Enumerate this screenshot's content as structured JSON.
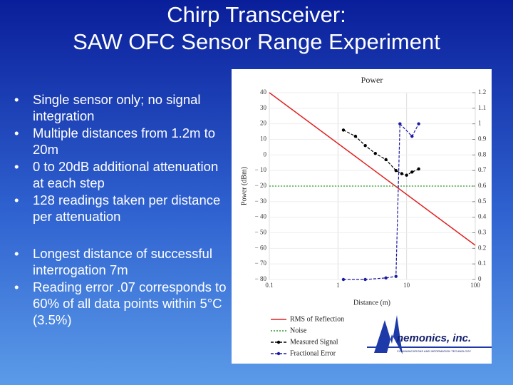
{
  "slide": {
    "title_lines": [
      "Chirp Transceiver:",
      "SAW OFC Sensor Range Experiment"
    ],
    "bullet_groups": [
      [
        "Single sensor only; no signal integration",
        "Multiple distances from 1.2m to 20m",
        "0 to 20dB additional attenuation at each step",
        "128 readings taken per distance per attenuation"
      ],
      [
        "Longest distance of successful interrogation 7m",
        "Reading error .07 corresponds to 60% of all data points within 5°C (3.5%)"
      ]
    ],
    "logo": {
      "name": "nemonics, inc.",
      "tagline": "COMMUNICATIONS AND INFORMATION TECHNOLOGY"
    }
  },
  "chart_data": {
    "type": "line",
    "title": "Power",
    "x_label": "Distance (m)",
    "y_label": "Power (dBm)",
    "x_scale": "log",
    "xlim": [
      0.1,
      100
    ],
    "xticks": [
      0.1,
      1,
      10,
      100
    ],
    "ylim": [
      -80,
      40
    ],
    "yticks": [
      40,
      30,
      20,
      10,
      0,
      {
        "value": -10,
        "label": "− 10"
      },
      {
        "value": -20,
        "label": "− 20"
      },
      {
        "value": -30,
        "label": "− 30"
      },
      {
        "value": -40,
        "label": "− 40"
      },
      {
        "value": -50,
        "label": "− 50"
      },
      {
        "value": -60,
        "label": "− 60"
      },
      {
        "value": -70,
        "label": "− 70"
      },
      {
        "value": -80,
        "label": "− 80"
      }
    ],
    "y2lim": [
      0,
      1.2
    ],
    "y2ticks": [
      1.2,
      1.1,
      1,
      0.9,
      0.8,
      0.7,
      0.6,
      0.5,
      0.4,
      0.3,
      0.2,
      0.1,
      0
    ],
    "grid": true,
    "legend": "below",
    "series": [
      {
        "name": "RMS of Reflection",
        "color": "#e02020",
        "style": "solid",
        "markers": false,
        "x": [
          0.1,
          100
        ],
        "values": [
          40,
          -58
        ]
      },
      {
        "name": "Noise",
        "color": "#2a9d2a",
        "style": "dotted",
        "markers": false,
        "x": [
          0.1,
          100
        ],
        "values": [
          -20,
          -20
        ]
      },
      {
        "name": "Measured Signal",
        "color": "#000000",
        "style": "dashed",
        "markers": true,
        "x": [
          1.2,
          1.8,
          2.5,
          3.5,
          5,
          7,
          8.5,
          10,
          12,
          15
        ],
        "values": [
          16,
          12,
          6,
          1,
          -3,
          -10,
          -12,
          -13,
          -11,
          -9
        ]
      },
      {
        "name": "Fractional Error",
        "color": "#1a1aa0",
        "style": "dashed",
        "markers": true,
        "axis": "y2",
        "x": [
          1.2,
          2.5,
          5,
          7,
          8,
          12,
          15
        ],
        "values": [
          0,
          0,
          0.01,
          0.02,
          1,
          0.92,
          1
        ]
      }
    ]
  }
}
